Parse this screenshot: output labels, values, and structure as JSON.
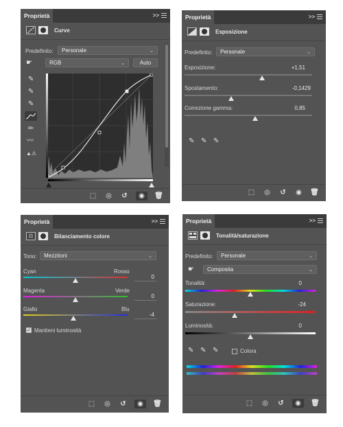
{
  "colors": {
    "panel_bg": "#535353",
    "tab_bar": "#3b3b3b",
    "text": "#dcdcdc"
  },
  "curves": {
    "tab": "Proprietà",
    "tab_controls": ">>",
    "title": "Curve",
    "preset_label": "Predefinito:",
    "preset_value": "Personale",
    "channel_value": "RGB",
    "auto_label": "Auto"
  },
  "exposure": {
    "tab": "Proprietà",
    "tab_controls": ">>",
    "title": "Esposizione",
    "preset_label": "Predefinito:",
    "preset_value": "Personale",
    "sliders": [
      {
        "label": "Esposizione:",
        "value": "+1,51",
        "position": 0.58
      },
      {
        "label": "Spostamento:",
        "value": "-0,1429",
        "position": 0.35
      },
      {
        "label": "Correzione gamma:",
        "value": "0,85",
        "position": 0.52
      }
    ]
  },
  "color_balance": {
    "tab": "Proprietà",
    "tab_controls": ">>",
    "title": "Bilanciamento colore",
    "tone_label": "Tono:",
    "tone_value": "Mezzitoni",
    "sliders": [
      {
        "left": "Cyan",
        "right": "Rosso",
        "value": "0",
        "position": 0.5
      },
      {
        "left": "Magenta",
        "right": "Verde",
        "value": "0",
        "position": 0.5
      },
      {
        "left": "Giallo",
        "right": "Blu",
        "value": "-4",
        "position": 0.48
      }
    ],
    "preserve_label": "Mantieni luminosità",
    "preserve_checked": true
  },
  "hue_sat": {
    "tab": "Proprietà",
    "tab_controls": ">>",
    "title": "Tonalità/saturazione",
    "preset_label": "Predefinito:",
    "preset_value": "Personale",
    "channel_value": "Composita",
    "sliders": [
      {
        "label": "Tonalità:",
        "value": "0",
        "position": 0.5
      },
      {
        "label": "Saturazione:",
        "value": "-24",
        "position": 0.38
      },
      {
        "label": "Luminosità:",
        "value": "0",
        "position": 0.5
      }
    ],
    "colorize_label": "Colora",
    "colorize_checked": false
  }
}
